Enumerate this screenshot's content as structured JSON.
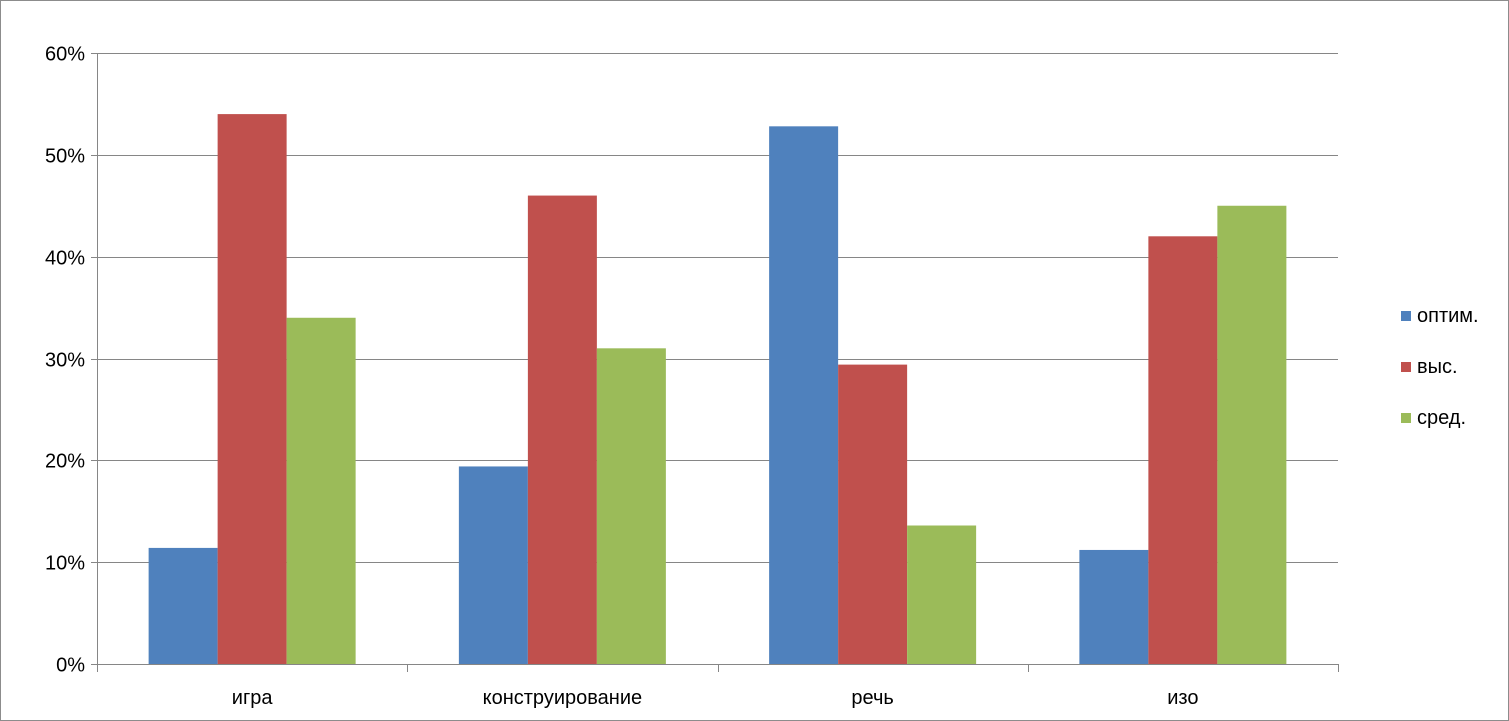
{
  "chart_data": {
    "type": "bar",
    "categories": [
      "игра",
      "конструирование",
      "речь",
      "изо"
    ],
    "series": [
      {
        "name": "оптим.",
        "values": [
          0.114,
          0.194,
          0.528,
          0.112
        ],
        "color": "#4F81BD"
      },
      {
        "name": "выс.",
        "values": [
          0.54,
          0.46,
          0.294,
          0.42
        ],
        "color": "#C0504D"
      },
      {
        "name": "сред.",
        "values": [
          0.34,
          0.31,
          0.136,
          0.45
        ],
        "color": "#9BBB59"
      }
    ],
    "ylim": [
      0,
      0.6
    ],
    "yticks": [
      0,
      0.1,
      0.2,
      0.3,
      0.4,
      0.5,
      0.6
    ],
    "ytick_labels": [
      "0%",
      "10%",
      "20%",
      "30%",
      "40%",
      "50%",
      "60%"
    ],
    "grid": true,
    "legend_position": "right"
  }
}
